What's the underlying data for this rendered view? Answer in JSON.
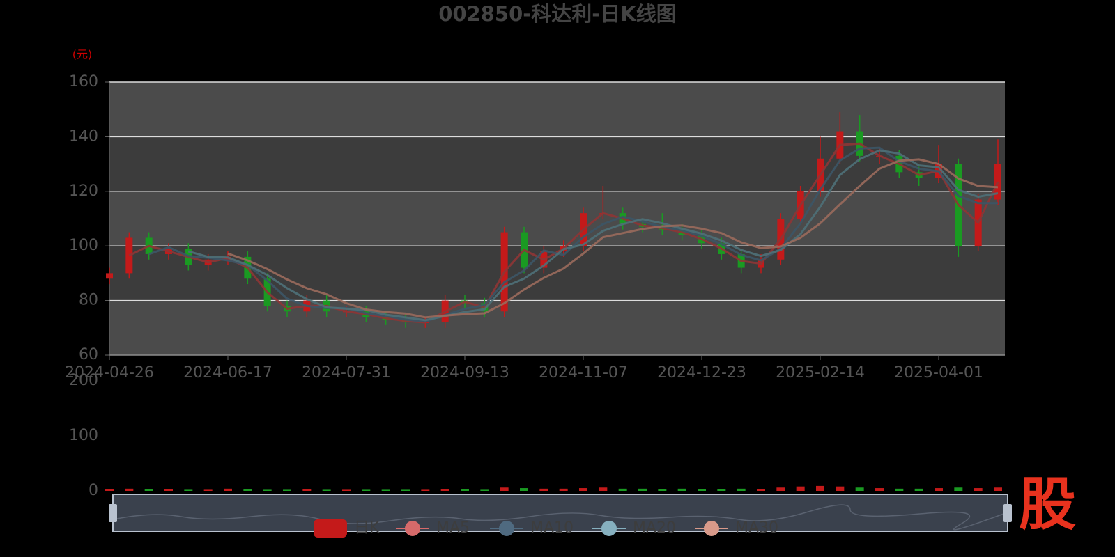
{
  "chart_data": {
    "type": "candlestick",
    "title": "002850-科达利-日K线图",
    "unit": "(元)",
    "logo": "股",
    "categories": [
      "2024-04-26",
      null,
      null,
      null,
      null,
      null,
      "2024-06-17",
      null,
      null,
      null,
      null,
      null,
      "2024-07-31",
      null,
      null,
      null,
      null,
      null,
      "2024-09-13",
      null,
      null,
      null,
      null,
      null,
      "2024-11-07",
      null,
      null,
      null,
      null,
      null,
      "2024-12-23",
      null,
      null,
      null,
      null,
      null,
      "2025-02-14",
      null,
      null,
      null,
      null,
      null,
      "2025-04-01",
      null,
      null,
      null
    ],
    "ylim": [
      60,
      160
    ],
    "yticks": [
      60,
      80,
      100,
      120,
      140,
      160
    ],
    "grid": true,
    "series": [
      {
        "name": "日K",
        "type": "candlestick",
        "up_color": "#c41a1a",
        "down_color": "#1a9a22",
        "open": [
          88,
          90,
          103,
          97,
          99,
          93,
          95,
          96,
          88,
          78,
          76,
          80,
          76,
          76,
          74,
          73,
          72,
          72,
          80,
          79,
          76,
          105,
          92,
          98,
          100,
          112,
          112,
          108,
          107,
          106,
          104,
          101,
          97,
          92,
          95,
          110,
          120,
          132,
          142,
          133,
          133,
          127,
          125,
          130,
          100,
          117
        ],
        "close": [
          90,
          103,
          97,
          99,
          93,
          95,
          96,
          88,
          78,
          76,
          80,
          76,
          76,
          74,
          73,
          72,
          72,
          80,
          79,
          76,
          105,
          92,
          98,
          100,
          112,
          112,
          108,
          107,
          106,
          104,
          101,
          97,
          92,
          95,
          110,
          120,
          132,
          142,
          133,
          133,
          127,
          125,
          130,
          100,
          117,
          130
        ],
        "low": [
          86,
          88,
          95,
          95,
          91,
          91,
          93,
          86,
          76,
          74,
          74,
          74,
          74,
          72,
          71,
          70,
          70,
          70,
          77,
          74,
          74,
          90,
          90,
          96,
          98,
          110,
          106,
          105,
          104,
          102,
          99,
          95,
          90,
          90,
          93,
          108,
          118,
          130,
          131,
          130,
          125,
          122,
          123,
          96,
          98,
          115
        ],
        "high": [
          92,
          105,
          105,
          101,
          101,
          97,
          98,
          98,
          90,
          80,
          82,
          82,
          78,
          78,
          76,
          75,
          74,
          82,
          82,
          81,
          107,
          107,
          100,
          102,
          114,
          122,
          114,
          110,
          112,
          108,
          106,
          103,
          99,
          97,
          112,
          122,
          140,
          149,
          148,
          136,
          135,
          129,
          137,
          132,
          119,
          139
        ]
      },
      {
        "name": "MA5",
        "type": "line",
        "color": "#8e3535",
        "legend_color": "#d66a6a",
        "values": [
          null,
          96.5,
          100,
          98,
          96,
          94,
          95.5,
          92,
          83,
          77,
          78,
          78,
          76,
          75,
          73.5,
          72.5,
          72,
          76,
          79.5,
          77.5,
          90.5,
          98.5,
          95,
          99,
          106,
          112,
          110,
          107.5,
          106.5,
          105,
          102.5,
          99,
          94.5,
          93.5,
          102.5,
          115,
          126,
          137,
          137.5,
          133,
          130,
          126,
          127.5,
          115,
          108.5,
          123.5
        ]
      },
      {
        "name": "MA10",
        "type": "line",
        "color": "#3c5566",
        "legend_color": "#4f6a80",
        "values": [
          null,
          null,
          97,
          99.5,
          96.3,
          95.7,
          94.7,
          93,
          87.3,
          80.7,
          78,
          77.3,
          77.3,
          75.3,
          74.3,
          73,
          72.3,
          74.7,
          77,
          78.3,
          86.7,
          91,
          98.3,
          96.7,
          103.3,
          108,
          110.7,
          109,
          107,
          105.7,
          103.7,
          100.7,
          96.7,
          94.7,
          99,
          108.3,
          120.7,
          131.3,
          135.7,
          136,
          131,
          128.3,
          127.3,
          118.3,
          115.7,
          115.7
        ]
      },
      {
        "name": "MA20",
        "type": "line",
        "color": "#4e7078",
        "legend_color": "#86b0bf",
        "values": [
          null,
          null,
          null,
          null,
          98,
          96,
          95.8,
          93,
          89.3,
          84.5,
          80.5,
          77.5,
          77,
          76.5,
          74.8,
          73.8,
          72.8,
          74.3,
          75.8,
          76.8,
          85,
          88,
          92.8,
          98.8,
          100.5,
          105.5,
          108,
          109.8,
          108.3,
          106.3,
          104.5,
          102,
          98.5,
          96.3,
          98.5,
          104.3,
          114.3,
          126,
          131.8,
          135,
          133.8,
          129.5,
          128.8,
          120.5,
          118,
          119.3
        ]
      },
      {
        "name": "MA30",
        "type": "line",
        "color": "#9a6a5c",
        "legend_color": "#d89a8a",
        "values": [
          null,
          null,
          null,
          null,
          null,
          null,
          97.2,
          94.7,
          91.5,
          87.7,
          84.5,
          82.3,
          79,
          76.7,
          75.8,
          75.2,
          73.8,
          74.5,
          75,
          75.3,
          79,
          84,
          88.3,
          91.7,
          97.2,
          103.2,
          104.7,
          106.2,
          107.2,
          107.5,
          106.3,
          104.7,
          101.3,
          99.2,
          99.8,
          103,
          108.3,
          115.2,
          122,
          128.3,
          131.2,
          131.7,
          130,
          124.7,
          122,
          121.5
        ]
      }
    ],
    "volume": {
      "ylim": [
        0,
        200
      ],
      "yticks": [
        0,
        100,
        200
      ],
      "values": [
        3,
        4,
        3,
        3,
        2,
        2,
        4,
        3,
        2,
        2,
        3,
        2,
        2,
        2,
        2,
        2,
        2,
        3,
        3,
        2,
        6,
        5,
        4,
        4,
        5,
        6,
        4,
        4,
        3,
        4,
        3,
        3,
        4,
        3,
        6,
        8,
        9,
        8,
        6,
        5,
        4,
        4,
        5,
        6,
        5,
        6
      ]
    }
  }
}
